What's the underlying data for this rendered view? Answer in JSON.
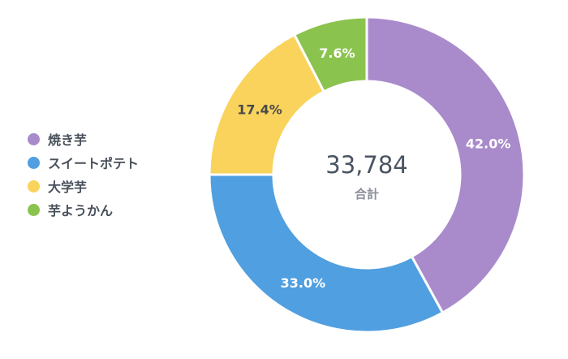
{
  "chart_data": {
    "type": "pie",
    "style": "donut",
    "categories": [
      "焼き芋",
      "スイートポテト",
      "大学芋",
      "芋ようかん"
    ],
    "values": [
      42.0,
      33.0,
      17.4,
      7.6
    ],
    "value_labels": [
      "42.0%",
      "33.0%",
      "17.4%",
      "7.6%"
    ],
    "colors": [
      "#A98BCB",
      "#509FE0",
      "#F9D35C",
      "#8BC34F"
    ],
    "label_colors": [
      "#ffffff",
      "#ffffff",
      "#4a4a4a",
      "#ffffff"
    ],
    "center": {
      "value": "33,784",
      "label": "合計"
    },
    "legend_position": "left"
  }
}
